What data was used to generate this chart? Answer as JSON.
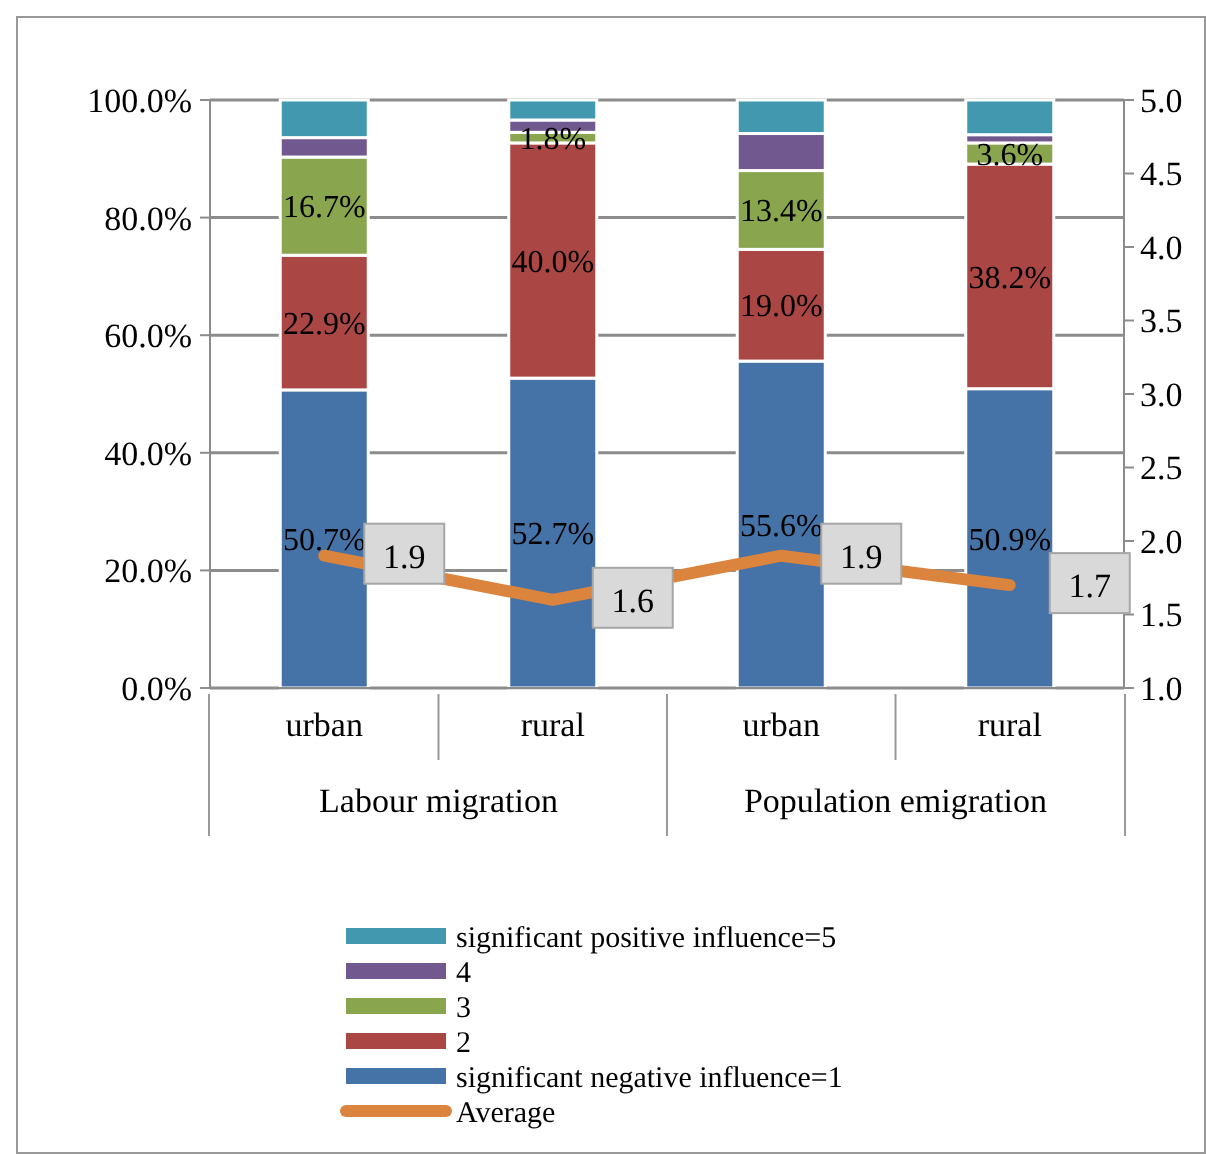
{
  "chart_data": {
    "type": "bar",
    "stacked": true,
    "categories": [
      "urban",
      "rural",
      "urban",
      "rural"
    ],
    "annotations": [
      "Labour migration",
      "Population emigration"
    ],
    "series": [
      {
        "name": "significant negative influence=1",
        "color": "#4572a7",
        "values": [
          50.7,
          52.7,
          55.6,
          50.9
        ],
        "value_labels": [
          "50.7%",
          "52.7%",
          "55.6%",
          "50.9%"
        ]
      },
      {
        "name": "2",
        "color": "#aa4643",
        "values": [
          22.9,
          40.0,
          19.0,
          38.2
        ],
        "value_labels": [
          "22.9%",
          "40.0%",
          "19.0%",
          "38.2%"
        ]
      },
      {
        "name": "3",
        "color": "#89a54e",
        "values": [
          16.7,
          1.8,
          13.4,
          3.6
        ],
        "value_labels": [
          "16.7%",
          "1.8%",
          "13.4%",
          "3.6%"
        ]
      },
      {
        "name": "4",
        "color": "#71588f",
        "values": [
          3.3,
          2.1,
          6.3,
          1.4
        ]
      },
      {
        "name": "significant positive influence=5",
        "color": "#4198af",
        "values": [
          6.4,
          3.4,
          5.7,
          5.9
        ]
      },
      {
        "name": "Average",
        "type": "line",
        "axis": "y2",
        "color": "#db843d",
        "values": [
          1.9,
          1.6,
          1.9,
          1.7
        ],
        "value_labels": [
          "1.9",
          "1.6",
          "1.9",
          "1.7"
        ],
        "marker": "none"
      }
    ],
    "ylim": [
      0,
      100
    ],
    "yticks": [
      {
        "value": 0,
        "label": "0.0%"
      },
      {
        "value": 20,
        "label": "20.0%"
      },
      {
        "value": 40,
        "label": "40.0%"
      },
      {
        "value": 60,
        "label": "60.0%"
      },
      {
        "value": 80,
        "label": "80.0%"
      },
      {
        "value": 100,
        "label": "100.0%"
      }
    ],
    "y2lim": [
      1,
      5
    ],
    "y2ticks": [
      {
        "value": 1,
        "label": "1.0"
      },
      {
        "value": 1.5,
        "label": "1.5"
      },
      {
        "value": 2,
        "label": "2.0"
      },
      {
        "value": 2.5,
        "label": "2.5"
      },
      {
        "value": 3,
        "label": "3.0"
      },
      {
        "value": 3.5,
        "label": "3.5"
      },
      {
        "value": 4,
        "label": "4.0"
      },
      {
        "value": 4.5,
        "label": "4.5"
      },
      {
        "value": 5,
        "label": "5.0"
      }
    ],
    "grid": "y",
    "legend": "bottom"
  }
}
